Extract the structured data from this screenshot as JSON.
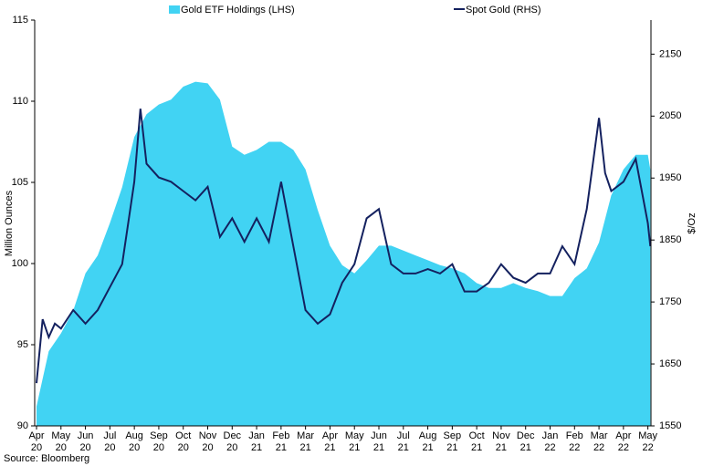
{
  "chart_data": {
    "type": "area_line",
    "legend_position": "top",
    "source": "Source: Bloomberg",
    "ylabel": "Million Ounces",
    "y2label": "$/Oz",
    "xlim": [
      0,
      25.2
    ],
    "xticks": [
      {
        "value": 0,
        "label": "Apr\n20"
      },
      {
        "value": 1,
        "label": "May\n20"
      },
      {
        "value": 2,
        "label": "Jun\n20"
      },
      {
        "value": 3,
        "label": "Jul\n20"
      },
      {
        "value": 4,
        "label": "Aug\n20"
      },
      {
        "value": 5,
        "label": "Sep\n20"
      },
      {
        "value": 6,
        "label": "Oct\n20"
      },
      {
        "value": 7,
        "label": "Nov\n20"
      },
      {
        "value": 8,
        "label": "Dec\n20"
      },
      {
        "value": 9,
        "label": "Jan\n21"
      },
      {
        "value": 10,
        "label": "Feb\n21"
      },
      {
        "value": 11,
        "label": "Mar\n21"
      },
      {
        "value": 12,
        "label": "Apr\n21"
      },
      {
        "value": 13,
        "label": "May\n21"
      },
      {
        "value": 14,
        "label": "Jun\n21"
      },
      {
        "value": 15,
        "label": "Jul\n21"
      },
      {
        "value": 16,
        "label": "Aug\n21"
      },
      {
        "value": 17,
        "label": "Sep\n21"
      },
      {
        "value": 18,
        "label": "Oct\n21"
      },
      {
        "value": 19,
        "label": "Nov\n21"
      },
      {
        "value": 20,
        "label": "Dec\n21"
      },
      {
        "value": 21,
        "label": "Jan\n22"
      },
      {
        "value": 22,
        "label": "Feb\n22"
      },
      {
        "value": 23,
        "label": "Mar\n22"
      },
      {
        "value": 24,
        "label": "Apr\n22"
      },
      {
        "value": 25,
        "label": "May\n22"
      }
    ],
    "ylim": [
      90,
      115
    ],
    "yticks": [
      90,
      95,
      100,
      105,
      110,
      115
    ],
    "y2lim": [
      1550,
      2205
    ],
    "y2ticks": [
      1550,
      1650,
      1750,
      1850,
      1950,
      2050,
      2150
    ],
    "series": [
      {
        "name": "Gold ETF Holdings (LHS)",
        "kind": "area",
        "color": "#41d3f3",
        "x": [
          0,
          0.5,
          1,
          1.5,
          2,
          2.5,
          3,
          3.5,
          4,
          4.5,
          5,
          5.5,
          6,
          6.5,
          7,
          7.5,
          8,
          8.5,
          9,
          9.5,
          10,
          10.5,
          11,
          11.5,
          12,
          12.5,
          13,
          13.5,
          14,
          14.5,
          15,
          15.5,
          16,
          16.5,
          17,
          17.5,
          18,
          18.5,
          19,
          19.5,
          20,
          20.5,
          21,
          21.5,
          22,
          22.5,
          23,
          23.5,
          24,
          24.5,
          25,
          25.1
        ],
        "values": [
          91.2,
          94.6,
          95.7,
          97.1,
          99.4,
          100.5,
          102.5,
          104.7,
          107.8,
          109.2,
          109.8,
          110.1,
          110.9,
          111.2,
          111.1,
          110.1,
          107.2,
          106.7,
          107.0,
          107.5,
          107.5,
          107.0,
          105.8,
          103.3,
          101.1,
          99.9,
          99.4,
          100.2,
          101.1,
          101.1,
          100.8,
          100.5,
          100.2,
          99.9,
          99.7,
          99.4,
          98.8,
          98.5,
          98.5,
          98.8,
          98.5,
          98.3,
          98.0,
          98.0,
          99.1,
          99.7,
          101.3,
          104.2,
          105.8,
          106.7,
          106.7,
          105.8
        ]
      },
      {
        "name": "Spot Gold (RHS)",
        "kind": "line",
        "axis": "y2",
        "color": "#14215f",
        "x": [
          0,
          0.25,
          0.5,
          0.75,
          1,
          1.5,
          2,
          2.5,
          3,
          3.5,
          4,
          4.25,
          4.5,
          5,
          5.5,
          6,
          6.5,
          7,
          7.5,
          8,
          8.5,
          9,
          9.5,
          10,
          10.5,
          11,
          11.5,
          12,
          12.5,
          13,
          13.5,
          14,
          14.5,
          15,
          15.5,
          16,
          16.5,
          17,
          17.5,
          18,
          18.5,
          19,
          19.5,
          20,
          20.5,
          21,
          21.5,
          22,
          22.5,
          23,
          23.25,
          23.5,
          24,
          24.5,
          25,
          25.1
        ],
        "values": [
          1619,
          1722,
          1693,
          1715,
          1707,
          1737,
          1715,
          1737,
          1774,
          1811,
          1944,
          2062,
          1973,
          1951,
          1944,
          1929,
          1914,
          1936,
          1855,
          1885,
          1847,
          1885,
          1847,
          1944,
          1840,
          1737,
          1715,
          1730,
          1781,
          1811,
          1885,
          1900,
          1811,
          1796,
          1796,
          1803,
          1796,
          1811,
          1767,
          1767,
          1781,
          1811,
          1789,
          1781,
          1796,
          1796,
          1840,
          1811,
          1900,
          2047,
          1958,
          1929,
          1944,
          1981,
          1877,
          1840
        ]
      }
    ]
  }
}
